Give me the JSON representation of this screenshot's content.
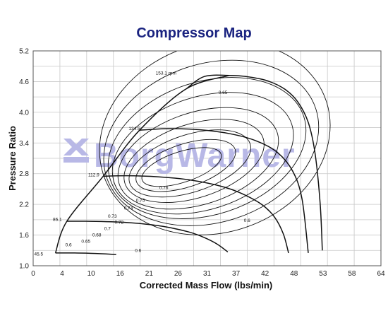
{
  "chart_data": {
    "type": "line",
    "title": "Compressor Map",
    "xlabel": "Corrected Mass Flow (lbs/min)",
    "ylabel": "Pressure Ratio",
    "xlim": [
      0,
      67
    ],
    "ylim": [
      1.0,
      5.2
    ],
    "x_ticks": [
      "0",
      "4",
      "10",
      "16",
      "21",
      "26",
      "31",
      "37",
      "42",
      "48",
      "53",
      "58",
      "64"
    ],
    "y_ticks": [
      "1.0",
      "1.6",
      "2.2",
      "2.8",
      "3.4",
      "4.0",
      "4.6",
      "5.2"
    ],
    "grid": true,
    "watermark": "BorgWarner",
    "speed_labels": [
      "45.5",
      "86.1",
      "112.9",
      "134.5",
      "153.1 rpm"
    ],
    "efficiency_labels": [
      "0.65",
      "0.6",
      "0.65",
      "0.68",
      "0.7",
      "0.72",
      "0.73",
      "0.74",
      "0.75",
      "0.76",
      "0.6",
      "0.6",
      "0.65"
    ],
    "surge_line": {
      "x": [
        4.3,
        6.5,
        13.5,
        20.5,
        29.5,
        37.8
      ],
      "y": [
        1.25,
        1.87,
        2.75,
        3.65,
        4.46,
        4.72
      ]
    },
    "speed_lines": [
      {
        "label": "45.5",
        "x": [
          4.3,
          8,
          12,
          16
        ],
        "y": [
          1.25,
          1.25,
          1.24,
          1.22
        ]
      },
      {
        "label": "86.1",
        "x": [
          6.5,
          10,
          15,
          20,
          25,
          30,
          33,
          35.5,
          37.5
        ],
        "y": [
          1.87,
          1.87,
          1.86,
          1.83,
          1.77,
          1.66,
          1.55,
          1.42,
          1.27
        ]
      },
      {
        "label": "112.9",
        "x": [
          13.5,
          18,
          24,
          30,
          36,
          40,
          44,
          46.5,
          48.2,
          49.2
        ],
        "y": [
          2.75,
          2.76,
          2.74,
          2.68,
          2.56,
          2.42,
          2.2,
          1.95,
          1.62,
          1.25
        ]
      },
      {
        "label": "134.5",
        "x": [
          20.5,
          26,
          32,
          38,
          43,
          47,
          50,
          51.8,
          53
        ],
        "y": [
          3.65,
          3.68,
          3.66,
          3.58,
          3.44,
          3.22,
          2.85,
          2.3,
          1.25
        ]
      },
      {
        "label": "153.1 rpm",
        "x": [
          29.5,
          33,
          37.8,
          41,
          45,
          48.5,
          51,
          53,
          54.3,
          55.3,
          55.7
        ],
        "y": [
          4.46,
          4.7,
          4.72,
          4.7,
          4.62,
          4.45,
          4.2,
          3.8,
          3.2,
          2.2,
          1.3
        ]
      }
    ],
    "efficiency_islands": [
      {
        "label": "0.76",
        "cx": 28.6,
        "cy": 2.93,
        "rx": 8.0,
        "ry": 0.3
      },
      {
        "label": "0.75",
        "cx": 29.4,
        "cy": 2.96,
        "rx": 10.0,
        "ry": 0.42
      },
      {
        "label": "0.74",
        "cx": 30.2,
        "cy": 3.0,
        "rx": 12.2,
        "ry": 0.56
      },
      {
        "label": "0.73",
        "cx": 31.0,
        "cy": 3.05,
        "rx": 14.0,
        "ry": 0.72
      },
      {
        "label": "0.72",
        "cx": 31.8,
        "cy": 3.1,
        "rx": 16.0,
        "ry": 0.9
      },
      {
        "label": "0.7",
        "cx": 32.7,
        "cy": 3.2,
        "rx": 18.0,
        "ry": 1.1
      },
      {
        "label": "0.68",
        "cx": 33.5,
        "cy": 3.3,
        "rx": 19.6,
        "ry": 1.3
      },
      {
        "label": "0.65",
        "cx": 34.3,
        "cy": 3.4,
        "rx": 21.2,
        "ry": 1.55
      },
      {
        "label": "0.6",
        "cx": 35.0,
        "cy": 3.5,
        "rx": 22.6,
        "ry": 1.85
      }
    ],
    "annotations": [
      {
        "text": "45.5",
        "x": 0.2,
        "y": 1.2
      },
      {
        "text": "86.1",
        "x": 3.8,
        "y": 1.88
      },
      {
        "text": "112.9",
        "x": 10.6,
        "y": 2.75
      },
      {
        "text": "134.5",
        "x": 18.4,
        "y": 3.65
      },
      {
        "text": "153.1 rpm",
        "x": 23.6,
        "y": 4.74
      },
      {
        "text": "0.65",
        "x": 35.7,
        "y": 4.36
      },
      {
        "text": "0.6",
        "x": 6.2,
        "y": 1.38
      },
      {
        "text": "0.65",
        "x": 9.3,
        "y": 1.45
      },
      {
        "text": "0.68",
        "x": 11.4,
        "y": 1.57
      },
      {
        "text": "0.7",
        "x": 13.7,
        "y": 1.7
      },
      {
        "text": "0.72",
        "x": 15.7,
        "y": 1.82
      },
      {
        "text": "0.73",
        "x": 14.4,
        "y": 1.94
      },
      {
        "text": "0.74",
        "x": 17.5,
        "y": 2.1
      },
      {
        "text": "0.75",
        "x": 19.8,
        "y": 2.25
      },
      {
        "text": "0.76",
        "x": 24.3,
        "y": 2.5
      },
      {
        "text": "0.6",
        "x": 19.6,
        "y": 1.27
      },
      {
        "text": "0.6",
        "x": 40.6,
        "y": 1.86
      }
    ]
  }
}
